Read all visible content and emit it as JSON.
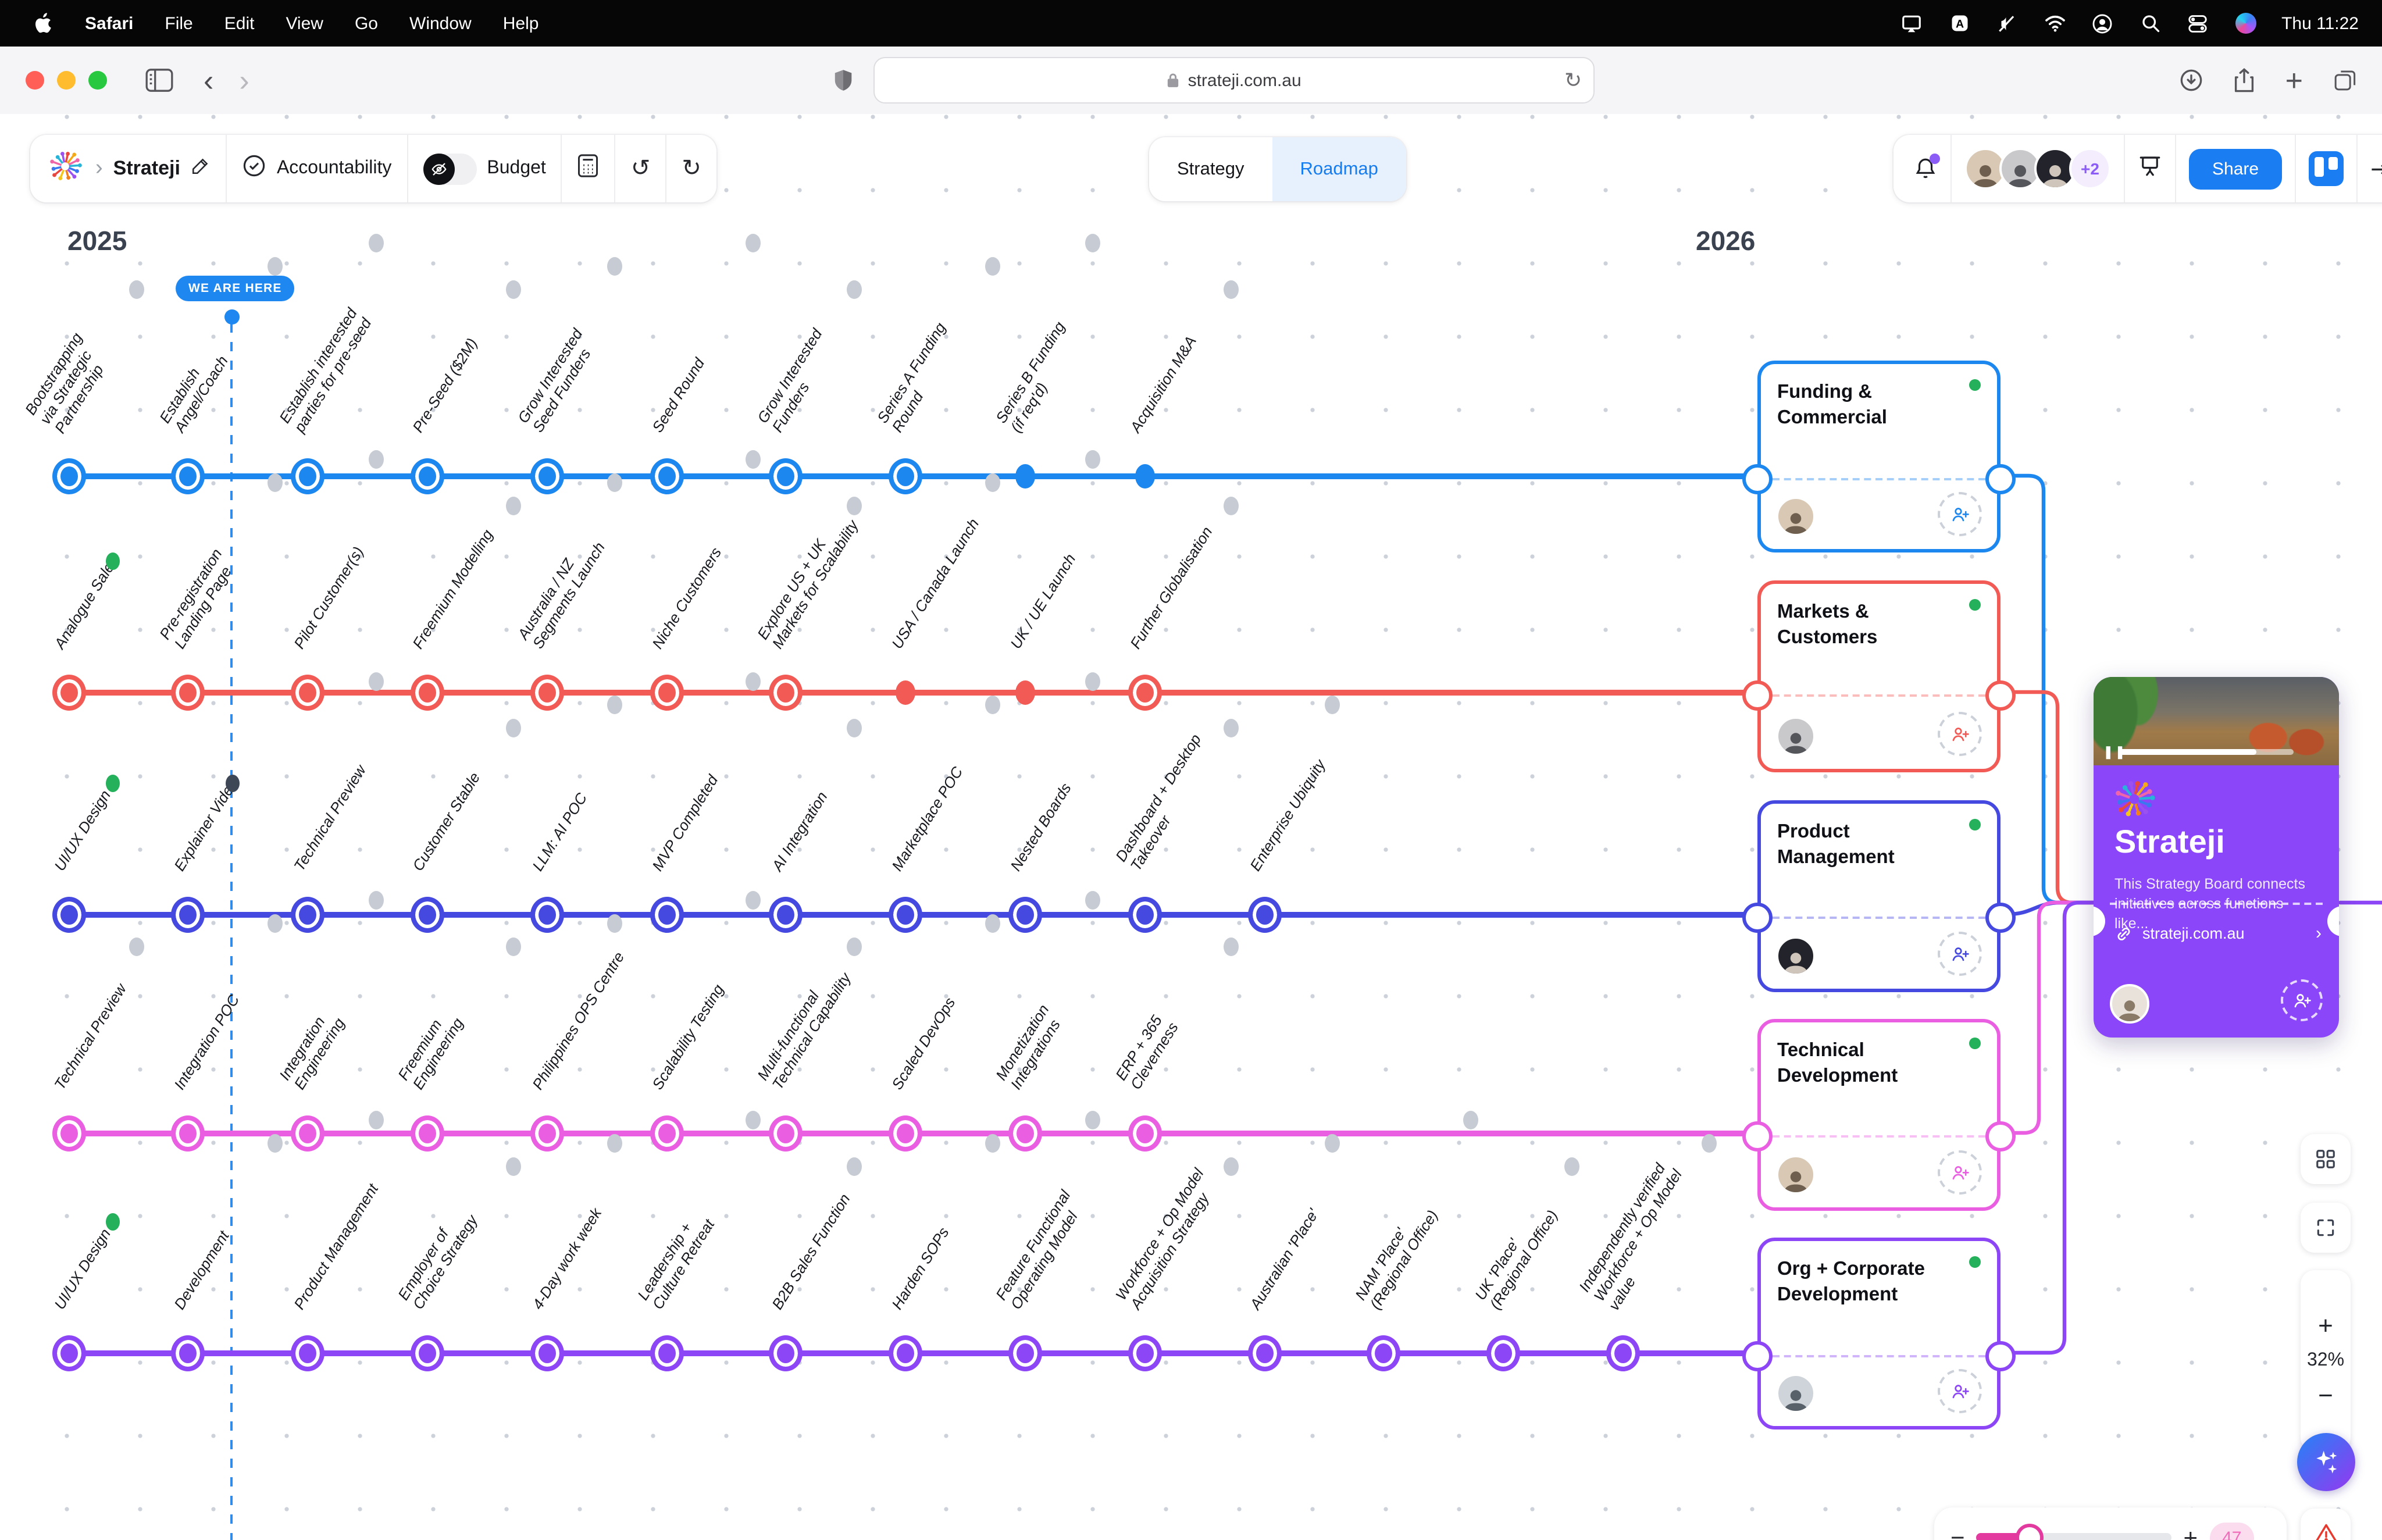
{
  "menu_bar": {
    "items": [
      "Safari",
      "File",
      "Edit",
      "View",
      "Go",
      "Window",
      "Help"
    ],
    "time": "Thu 11:22"
  },
  "browser": {
    "url": "strateji.com.au"
  },
  "toolbar": {
    "board_name": "Strateji",
    "accountability": "Accountability",
    "budget": "Budget"
  },
  "view_tabs": {
    "strategy": "Strategy",
    "roadmap": "Roadmap"
  },
  "collab": {
    "extra_avatars": "+2",
    "share": "Share"
  },
  "timeline": {
    "year_start": "2025",
    "year_end": "2026",
    "marker": "WE ARE HERE"
  },
  "popup": {
    "title": "Strateji",
    "description": "This Strategy Board connects initiatives across functions like...",
    "link": "strateji.com.au"
  },
  "controls": {
    "zoom_level": "32%",
    "zoom_in": "+",
    "zoom_out": "−",
    "slider_value": "47"
  },
  "tracks": [
    {
      "name": "Funding & Commercial",
      "color": "#1d87f0",
      "milestones": [
        {
          "label": "Bootstrapping\nvia Strategic\nPartnership",
          "node": "ring",
          "marker": "gray"
        },
        {
          "label": "Establish\nAngel/Coach",
          "node": "ring",
          "marker": "gray"
        },
        {
          "label": "Establish interested\nparties for pre-seed",
          "node": "ring",
          "marker": "gray"
        },
        {
          "label": "Pre-Seed ($2M)",
          "node": "ring",
          "marker": "gray"
        },
        {
          "label": "Grow Interested\nSeed Funders",
          "node": "ring",
          "marker": "gray"
        },
        {
          "label": "Seed Round",
          "node": "ring",
          "marker": "gray"
        },
        {
          "label": "Grow Interested\nFunders",
          "node": "ring",
          "marker": "gray"
        },
        {
          "label": "Series A Funding\nRound",
          "node": "ring",
          "marker": "gray"
        },
        {
          "label": "Series B Funding\n(if req'd)",
          "node": "dot",
          "marker": "gray"
        },
        {
          "label": "Acquisition M&A",
          "node": "dot",
          "marker": "gray"
        }
      ]
    },
    {
      "name": "Markets & Customers",
      "color": "#f25b55",
      "milestones": [
        {
          "label": "Analogue Sales",
          "node": "ring",
          "marker": "green"
        },
        {
          "label": "Pre-registration\nLanding Page",
          "node": "ring",
          "marker": "gray"
        },
        {
          "label": "Pilot Customer(s)",
          "node": "ring",
          "marker": "gray"
        },
        {
          "label": "Freemium Modelling",
          "node": "ring",
          "marker": "gray"
        },
        {
          "label": "Australia / NZ\nSegments Launch",
          "node": "ring",
          "marker": "gray"
        },
        {
          "label": "Niche Customers",
          "node": "ring",
          "marker": "gray"
        },
        {
          "label": "Explore US + UK\nMarkets for Scalability",
          "node": "ring",
          "marker": "gray"
        },
        {
          "label": "USA / Canada Launch",
          "node": "dot",
          "marker": "gray"
        },
        {
          "label": "UK / UE Launch",
          "node": "dot",
          "marker": "gray"
        },
        {
          "label": "Further Globalisation",
          "node": "ring",
          "marker": "gray"
        }
      ]
    },
    {
      "name": "Product Management",
      "color": "#4549e0",
      "milestones": [
        {
          "label": "UI/UX Design",
          "node": "ring",
          "marker": "green"
        },
        {
          "label": "Explainer Video",
          "node": "ring",
          "marker": "dark"
        },
        {
          "label": "Technical Preview",
          "node": "ring",
          "marker": "gray"
        },
        {
          "label": "Customer Stable",
          "node": "ring",
          "marker": "gray"
        },
        {
          "label": "LLM: AI POC",
          "node": "ring",
          "marker": "gray"
        },
        {
          "label": "MVP Completed",
          "node": "ring",
          "marker": "gray"
        },
        {
          "label": "AI Integration",
          "node": "ring",
          "marker": "gray"
        },
        {
          "label": "Marketplace POC",
          "node": "ring",
          "marker": "gray"
        },
        {
          "label": "Nested Boards",
          "node": "ring",
          "marker": "gray"
        },
        {
          "label": "Dashboard + Desktop\nTakeover",
          "node": "ring",
          "marker": "gray"
        },
        {
          "label": "Enterprise Ubiquity",
          "node": "ring",
          "marker": "gray"
        }
      ]
    },
    {
      "name": "Technical Development",
      "color": "#ea5fe2",
      "milestones": [
        {
          "label": "Technical Preview",
          "node": "ring",
          "marker": "gray"
        },
        {
          "label": "Integration POC",
          "node": "ring",
          "marker": "gray"
        },
        {
          "label": "Integration\nEngineering",
          "node": "ring",
          "marker": "gray"
        },
        {
          "label": "Freemium\nEngineering",
          "node": "ring",
          "marker": "gray"
        },
        {
          "label": "Philippines OPS Centre",
          "node": "ring",
          "marker": "gray"
        },
        {
          "label": "Scalability Testing",
          "node": "ring",
          "marker": "gray"
        },
        {
          "label": "Multi-functional\nTechnical Capability",
          "node": "ring",
          "marker": "gray"
        },
        {
          "label": "Scaled DevOps",
          "node": "ring",
          "marker": "gray"
        },
        {
          "label": "Monetization\nIntegrations",
          "node": "ring",
          "marker": "gray"
        },
        {
          "label": "ERP + 365\nCleverness",
          "node": "ring",
          "marker": "gray"
        }
      ]
    },
    {
      "name": "Org + Corporate Development",
      "color": "#8c46f6",
      "milestones": [
        {
          "label": "UI/UX Design",
          "node": "ring",
          "marker": "green"
        },
        {
          "label": "Development",
          "node": "ring",
          "marker": "gray"
        },
        {
          "label": "Product Management",
          "node": "ring",
          "marker": "gray"
        },
        {
          "label": "Employer of\nChoice Strategy",
          "node": "ring",
          "marker": "gray"
        },
        {
          "label": "4-Day work week",
          "node": "ring",
          "marker": "gray"
        },
        {
          "label": "Leadership +\nCulture Retreat",
          "node": "ring",
          "marker": "gray"
        },
        {
          "label": "B2B Sales Function",
          "node": "ring",
          "marker": "gray"
        },
        {
          "label": "Harden SOPs",
          "node": "ring",
          "marker": "gray"
        },
        {
          "label": "Feature Functional\nOperating Model",
          "node": "ring",
          "marker": "gray"
        },
        {
          "label": "Workforce + Op Model\nAcquisition Strategy",
          "node": "ring",
          "marker": "gray"
        },
        {
          "label": "Australian 'Place'",
          "node": "ring",
          "marker": "gray"
        },
        {
          "label": "NAM 'Place'\n(Regional Office)",
          "node": "ring",
          "marker": "gray"
        },
        {
          "label": "UK 'Place'\n(Regional Office)",
          "node": "ring",
          "marker": "gray"
        },
        {
          "label": "Independently verified\nWorkforce + Op Model\nvalue",
          "node": "ring",
          "marker": "gray"
        }
      ]
    }
  ]
}
